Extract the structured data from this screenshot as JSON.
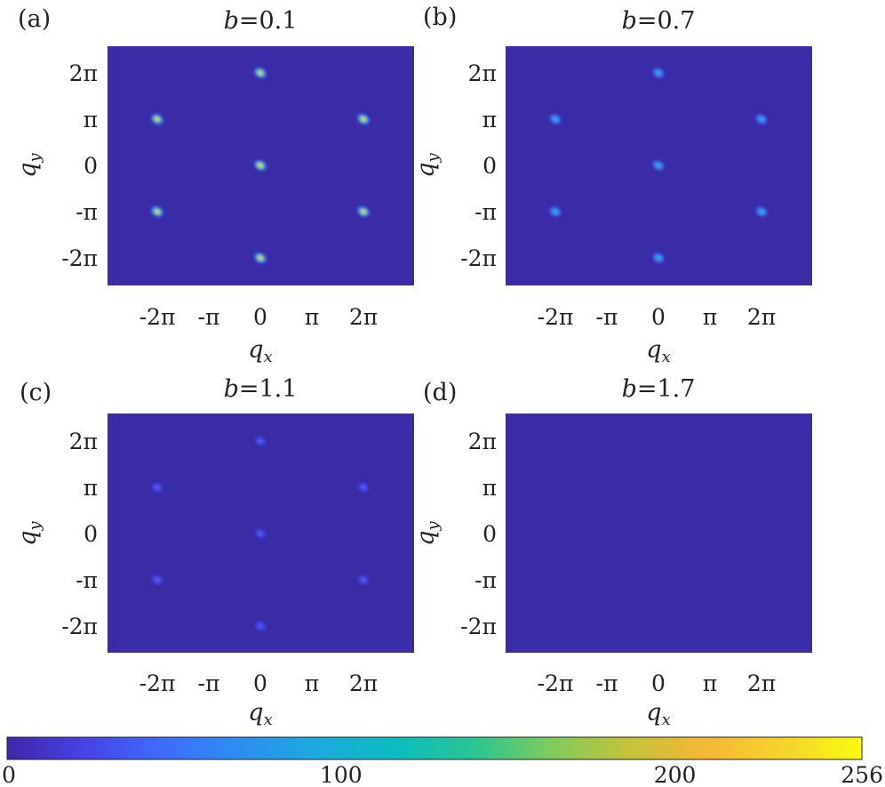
{
  "colors": {
    "colormap": [
      "#3e26a8",
      "#4743e7",
      "#3f6cfb",
      "#2d8ef1",
      "#1caadf",
      "#0bbcbf",
      "#2bc594",
      "#7ecb5d",
      "#c4c23a",
      "#f5b735",
      "#f6d32c",
      "#f9fb0e"
    ],
    "background_level": "#3a2ba6"
  },
  "chart_data": [
    {
      "type": "heatmap",
      "panel": "(a)",
      "title_var": "b",
      "title_value": "=0.1",
      "xlabel_var": "q",
      "xlabel_sub": "x",
      "ylabel_var": "q",
      "ylabel_sub": "y",
      "xticks": [
        "-2π",
        "-π",
        "0",
        "π",
        "2π"
      ],
      "yticks": [
        "2π",
        "π",
        "0",
        "-π",
        "-2π"
      ],
      "peaks": [
        {
          "qx": -2.0,
          "qy": 1.0,
          "value": 230
        },
        {
          "qx": 2.0,
          "qy": 1.0,
          "value": 230
        },
        {
          "qx": -2.0,
          "qy": -1.0,
          "value": 230
        },
        {
          "qx": 2.0,
          "qy": -1.0,
          "value": 230
        },
        {
          "qx": 0.0,
          "qy": 2.0,
          "value": 230
        },
        {
          "qx": 0.0,
          "qy": 0.0,
          "value": 240
        },
        {
          "qx": 0.0,
          "qy": -2.0,
          "value": 230
        }
      ]
    },
    {
      "type": "heatmap",
      "panel": "(b)",
      "title_var": "b",
      "title_value": "=0.7",
      "xlabel_var": "q",
      "xlabel_sub": "x",
      "ylabel_var": "q",
      "ylabel_sub": "y",
      "xticks": [
        "-2π",
        "-π",
        "0",
        "π",
        "2π"
      ],
      "yticks": [
        "2π",
        "π",
        "0",
        "-π",
        "-2π"
      ],
      "peaks": [
        {
          "qx": -2.0,
          "qy": 1.0,
          "value": 110
        },
        {
          "qx": 2.0,
          "qy": 1.0,
          "value": 110
        },
        {
          "qx": -2.0,
          "qy": -1.0,
          "value": 110
        },
        {
          "qx": 2.0,
          "qy": -1.0,
          "value": 110
        },
        {
          "qx": 0.0,
          "qy": 2.0,
          "value": 110
        },
        {
          "qx": 0.0,
          "qy": 0.0,
          "value": 110
        },
        {
          "qx": 0.0,
          "qy": -2.0,
          "value": 110
        }
      ]
    },
    {
      "type": "heatmap",
      "panel": "(c)",
      "title_var": "b",
      "title_value": "=1.1",
      "xlabel_var": "q",
      "xlabel_sub": "x",
      "ylabel_var": "q",
      "ylabel_sub": "y",
      "xticks": [
        "-2π",
        "-π",
        "0",
        "π",
        "2π"
      ],
      "yticks": [
        "2π",
        "π",
        "0",
        "-π",
        "-2π"
      ],
      "peaks": [
        {
          "qx": -2.0,
          "qy": 1.0,
          "value": 45
        },
        {
          "qx": 2.0,
          "qy": 1.0,
          "value": 45
        },
        {
          "qx": -2.0,
          "qy": -1.0,
          "value": 45
        },
        {
          "qx": 2.0,
          "qy": -1.0,
          "value": 45
        },
        {
          "qx": 0.0,
          "qy": 2.0,
          "value": 45
        },
        {
          "qx": 0.0,
          "qy": 0.0,
          "value": 45
        },
        {
          "qx": 0.0,
          "qy": -2.0,
          "value": 45
        }
      ]
    },
    {
      "type": "heatmap",
      "panel": "(d)",
      "title_var": "b",
      "title_value": "=1.7",
      "xlabel_var": "q",
      "xlabel_sub": "x",
      "ylabel_var": "q",
      "ylabel_sub": "y",
      "xticks": [
        "-2π",
        "-π",
        "0",
        "π",
        "2π"
      ],
      "yticks": [
        "2π",
        "π",
        "0",
        "-π",
        "-2π"
      ],
      "peaks": []
    }
  ],
  "colorbar": {
    "min": 0,
    "max": 256,
    "ticks": [
      "0",
      "100",
      "200",
      "256"
    ],
    "tick_values": [
      0,
      100,
      200,
      256
    ]
  }
}
